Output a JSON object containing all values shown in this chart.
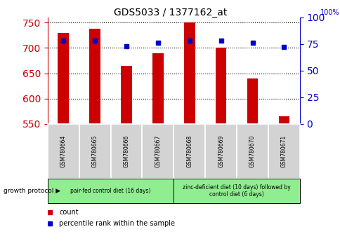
{
  "title": "GDS5033 / 1377162_at",
  "samples": [
    "GSM780664",
    "GSM780665",
    "GSM780666",
    "GSM780667",
    "GSM780668",
    "GSM780669",
    "GSM780670",
    "GSM780671"
  ],
  "counts": [
    730,
    737,
    664,
    690,
    750,
    700,
    640,
    565
  ],
  "percentiles": [
    78,
    78,
    73,
    76,
    78,
    78,
    76,
    72
  ],
  "ylim": [
    550,
    760
  ],
  "ylim_right": [
    0,
    100
  ],
  "yticks_left": [
    550,
    600,
    650,
    700,
    750
  ],
  "yticks_right": [
    0,
    25,
    50,
    75,
    100
  ],
  "bar_color": "#cc0000",
  "dot_color": "#0000cc",
  "bar_width": 0.35,
  "grid_color": "#000000",
  "axis_color_left": "#cc0000",
  "axis_color_right": "#0000cc",
  "group1_label": "pair-fed control diet (16 days)",
  "group2_label": "zinc-deficient diet (10 days) followed by\ncontrol diet (6 days)",
  "group1_color": "#90ee90",
  "group2_color": "#90ee90",
  "protocol_label": "growth protocol",
  "legend_count_label": "count",
  "legend_percentile_label": "percentile rank within the sample",
  "sample_bg_color": "#d3d3d3",
  "figsize": [
    4.85,
    3.54
  ],
  "dpi": 100
}
